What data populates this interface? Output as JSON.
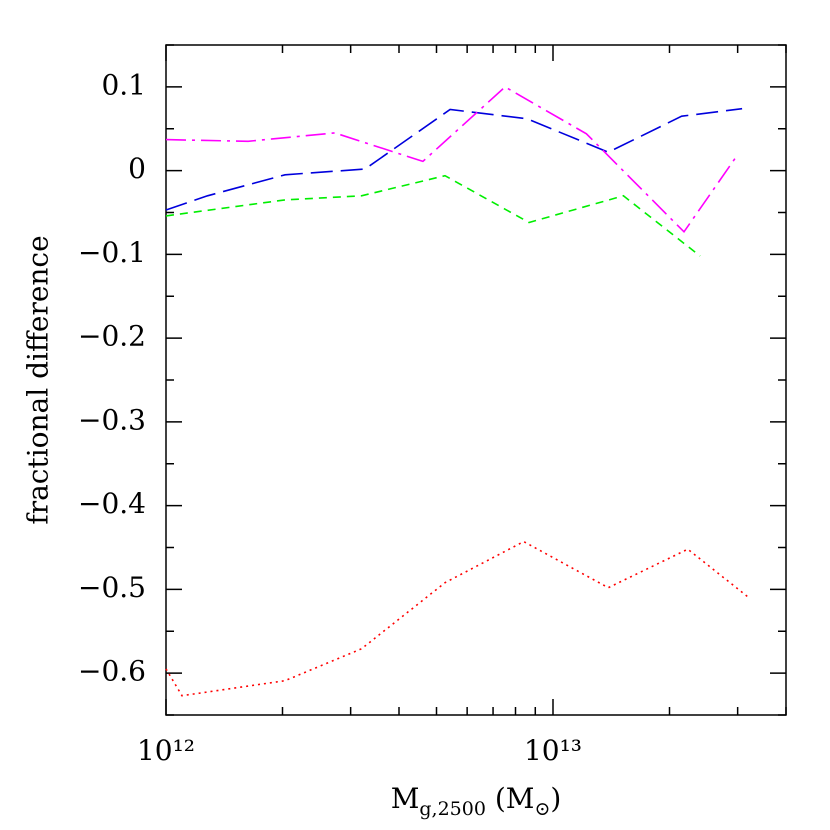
{
  "chart_data": {
    "type": "line",
    "ylabel": "fractional difference",
    "xlabel_parts": [
      {
        "text": "M"
      },
      {
        "text": "g,2500",
        "sub": true
      },
      {
        "text": " (M"
      },
      {
        "text": "⊙",
        "sub": true
      },
      {
        "text": ")"
      }
    ],
    "xscale": "log",
    "xlim": [
      1000000000000.0,
      40000000000000.0
    ],
    "ylim": [
      -0.65,
      0.15
    ],
    "xticks": [
      {
        "value": 1000000000000.0,
        "label": "10¹²"
      },
      {
        "value": 10000000000000.0,
        "label": "10¹³"
      }
    ],
    "xminor_ticks": [
      2000000000000.0,
      3000000000000.0,
      4000000000000.0,
      5000000000000.0,
      6000000000000.0,
      7000000000000.0,
      8000000000000.0,
      9000000000000.0,
      20000000000000.0,
      30000000000000.0,
      40000000000000.0
    ],
    "yticks": [
      {
        "value": -0.6,
        "label": "−0.6"
      },
      {
        "value": -0.5,
        "label": "−0.5"
      },
      {
        "value": -0.4,
        "label": "−0.4"
      },
      {
        "value": -0.3,
        "label": "−0.3"
      },
      {
        "value": -0.2,
        "label": "−0.2"
      },
      {
        "value": -0.1,
        "label": "−0.1"
      },
      0,
      0.1
    ],
    "yminor_ticks": [
      -0.65,
      -0.55,
      -0.45,
      -0.35,
      -0.25,
      -0.15,
      -0.05,
      0.05,
      0.15
    ],
    "series": [
      {
        "color": "#ff0000",
        "dash": "dotted",
        "x": [
          1000000000000.0,
          1100000000000.0,
          2030000000000.0,
          3200000000000.0,
          5260000000000.0,
          8400000000000.0,
          13900000000000.0,
          22300000000000.0,
          32300000000000.0
        ],
        "values": [
          -0.595,
          -0.627,
          -0.609,
          -0.571,
          -0.492,
          -0.443,
          -0.498,
          -0.452,
          -0.511
        ]
      },
      {
        "color": "#00ee00",
        "dash": "dashed",
        "x": [
          1000000000000.0,
          2030000000000.0,
          3200000000000.0,
          5260000000000.0,
          8670000000000.0,
          15200000000000.0,
          24000000000000.0
        ],
        "values": [
          -0.054,
          -0.035,
          -0.03,
          -0.006,
          -0.062,
          -0.03,
          -0.102
        ]
      },
      {
        "color": "#0000dd",
        "dash": "longdash",
        "x": [
          1000000000000.0,
          1280000000000.0,
          2030000000000.0,
          3270000000000.0,
          5420000000000.0,
          8560000000000.0,
          13900000000000.0,
          21500000000000.0,
          30800000000000.0
        ],
        "values": [
          -0.047,
          -0.03,
          -0.005,
          0.002,
          0.073,
          0.062,
          0.022,
          0.065,
          0.074
        ]
      },
      {
        "color": "#ff00ff",
        "dash": "dashdot",
        "x": [
          1000000000000.0,
          1630000000000.0,
          2730000000000.0,
          4610000000000.0,
          7520000000000.0,
          12200000000000.0,
          21800000000000.0,
          30100000000000.0
        ],
        "values": [
          0.037,
          0.035,
          0.045,
          0.011,
          0.1,
          0.044,
          -0.073,
          0.02
        ]
      }
    ]
  }
}
